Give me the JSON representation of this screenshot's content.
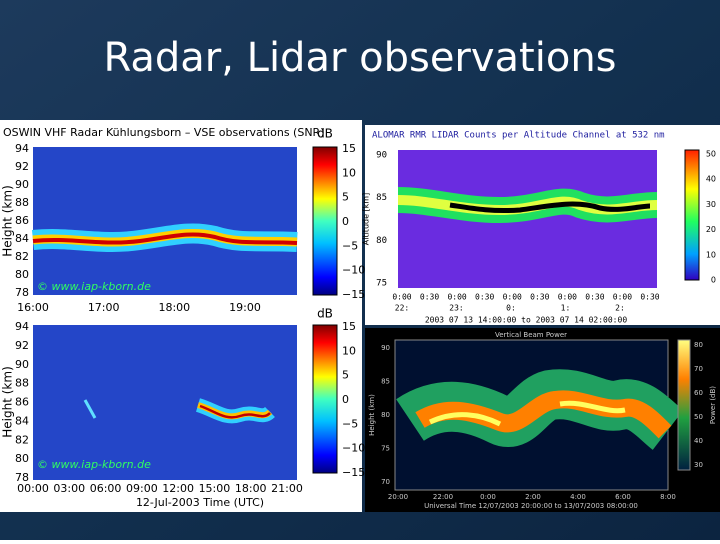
{
  "slide": {
    "title": "Radar, Lidar observations",
    "panels": [
      {
        "title": "OSWIN VHF Radar Kühlungsborn – VSE observations (SNR)",
        "y_label": "Height (km)",
        "yticks": [
          "94",
          "92",
          "90",
          "88",
          "86",
          "84",
          "82",
          "80",
          "78"
        ],
        "xticks": [
          "16:00",
          "17:00",
          "18:00",
          "19:00"
        ],
        "colorbar_unit": "dB",
        "colorbar_ticks": [
          "15",
          "10",
          "5",
          "0",
          "−5",
          "−10",
          "−15"
        ],
        "watermark": "© www.iap-kborn.de"
      },
      {
        "y_label": "Height (km)",
        "yticks": [
          "94",
          "92",
          "90",
          "88",
          "86",
          "84",
          "82",
          "80",
          "78"
        ],
        "xticks": [
          "00:00",
          "03:00",
          "06:00",
          "09:00",
          "12:00",
          "15:00",
          "18:00",
          "21:00"
        ],
        "x_label": "12-Jul-2003 Time (UTC)",
        "colorbar_unit": "dB",
        "colorbar_ticks": [
          "15",
          "10",
          "5",
          "0",
          "−5",
          "−10",
          "−15"
        ],
        "watermark": "© www.iap-kborn.de"
      },
      {
        "title": "ALOMAR RMR LIDAR Counts per Altitude Channel at 532 nm",
        "y_label": "Altitude [km]",
        "yticks": [
          "90",
          "85",
          "80",
          "75"
        ],
        "xticks": [
          "0:00",
          "0:30",
          "0:00",
          "0:30",
          "0:00",
          "0:30",
          "0:00",
          "0:30",
          "0:00",
          "0:30"
        ],
        "xticks_hours": [
          "22:",
          "23:",
          "0:",
          "1:",
          "2:"
        ],
        "x_label": "2003 07 13 14:00:00 to 2003 07 14 02:00:00",
        "colorbar_ticks": [
          "50",
          "40",
          "30",
          "20",
          "10",
          "0"
        ]
      },
      {
        "title": "Vertical Beam Power",
        "y_label": "Height (km)",
        "yticks": [
          "90",
          "85",
          "80",
          "75",
          "70"
        ],
        "xticks": [
          "20:00",
          "22:00",
          "0:00",
          "2:00",
          "4:00",
          "6:00",
          "8:00"
        ],
        "x_label": "Universal Time 12/07/2003 20:00:00 to 13/07/2003 08:00:00",
        "colorbar_unit": "Power (dB)",
        "colorbar_ticks": [
          "80",
          "70",
          "60",
          "50",
          "40",
          "30"
        ]
      }
    ]
  }
}
